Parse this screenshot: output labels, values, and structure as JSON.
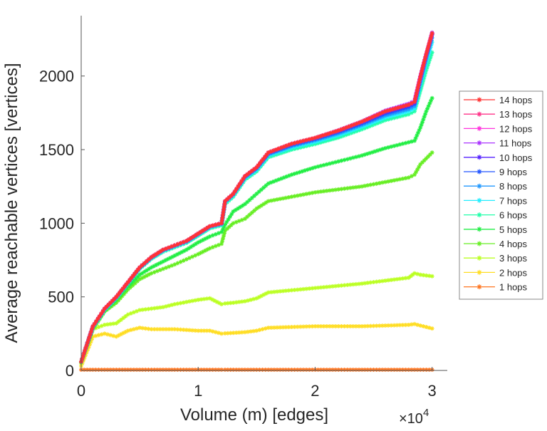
{
  "chart_data": {
    "type": "line",
    "title": "",
    "xlabel": "Volume (m) [edges]",
    "ylabel": "Average reachable vertices [vertices]",
    "x_multiplier_label": "×10",
    "x_multiplier_exp": "4",
    "xlim": [
      0,
      31300
    ],
    "ylim": [
      0,
      2410
    ],
    "xticks": [
      0,
      10000,
      20000,
      30000
    ],
    "xtick_labels": [
      "0",
      "1",
      "2",
      "3"
    ],
    "yticks": [
      0,
      500,
      1000,
      1500,
      2000
    ],
    "ytick_labels": [
      "0",
      "500",
      "1000",
      "1500",
      "2000"
    ],
    "grid": false,
    "legend_position": "right",
    "x": [
      0,
      1000,
      2000,
      3000,
      4000,
      5000,
      6000,
      7000,
      8000,
      9000,
      10000,
      11000,
      12000,
      12300,
      13000,
      14000,
      15000,
      16000,
      18000,
      20000,
      22000,
      24000,
      26000,
      28000,
      28500,
      29000,
      29500,
      30000
    ],
    "series": [
      {
        "name": "14 hops",
        "color": "#ff3333",
        "values": [
          60,
          300,
          420,
          500,
          600,
          700,
          770,
          820,
          850,
          880,
          930,
          980,
          1000,
          1150,
          1200,
          1320,
          1380,
          1480,
          1540,
          1580,
          1630,
          1690,
          1760,
          1805,
          1825,
          1995,
          2150,
          2290
        ]
      },
      {
        "name": "13 hops",
        "color": "#ff3388",
        "values": [
          60,
          300,
          420,
          500,
          600,
          700,
          770,
          820,
          850,
          880,
          930,
          980,
          1000,
          1150,
          1200,
          1320,
          1380,
          1480,
          1540,
          1580,
          1630,
          1690,
          1760,
          1805,
          1825,
          1995,
          2150,
          2290
        ]
      },
      {
        "name": "12 hops",
        "color": "#ff33dd",
        "values": [
          60,
          300,
          420,
          500,
          600,
          700,
          770,
          820,
          850,
          880,
          930,
          980,
          1000,
          1150,
          1200,
          1320,
          1380,
          1480,
          1540,
          1580,
          1630,
          1690,
          1760,
          1806,
          1826,
          1996,
          2150,
          2290
        ]
      },
      {
        "name": "11 hops",
        "color": "#aa33ff",
        "values": [
          60,
          300,
          420,
          500,
          600,
          700,
          770,
          820,
          850,
          880,
          930,
          980,
          1000,
          1150,
          1200,
          1320,
          1380,
          1480,
          1540,
          1580,
          1632,
          1692,
          1765,
          1812,
          1832,
          2000,
          2150,
          2295
        ]
      },
      {
        "name": "10 hops",
        "color": "#5522ff",
        "values": [
          60,
          300,
          420,
          500,
          600,
          700,
          770,
          820,
          850,
          880,
          930,
          980,
          1000,
          1150,
          1200,
          1320,
          1380,
          1480,
          1540,
          1580,
          1628,
          1688,
          1755,
          1800,
          1820,
          1990,
          2145,
          2285
        ]
      },
      {
        "name": "9 hops",
        "color": "#2255ff",
        "values": [
          60,
          298,
          418,
          498,
          598,
          698,
          768,
          818,
          848,
          878,
          928,
          978,
          998,
          1148,
          1198,
          1316,
          1376,
          1474,
          1532,
          1572,
          1620,
          1678,
          1745,
          1790,
          1810,
          1980,
          2140,
          2280
        ]
      },
      {
        "name": "8 hops",
        "color": "#2299ff",
        "values": [
          60,
          296,
          416,
          496,
          596,
          696,
          766,
          815,
          845,
          875,
          925,
          975,
          995,
          1145,
          1195,
          1312,
          1370,
          1468,
          1524,
          1564,
          1610,
          1668,
          1732,
          1775,
          1795,
          1960,
          2120,
          2260
        ]
      },
      {
        "name": "7 hops",
        "color": "#22eeff",
        "values": [
          60,
          294,
          414,
          494,
          594,
          694,
          763,
          812,
          842,
          872,
          922,
          972,
          992,
          1140,
          1190,
          1305,
          1362,
          1460,
          1514,
          1552,
          1598,
          1655,
          1718,
          1760,
          1780,
          1940,
          2090,
          2230
        ]
      },
      {
        "name": "6 hops",
        "color": "#22ffaa",
        "values": [
          60,
          292,
          410,
          490,
          590,
          690,
          758,
          806,
          836,
          866,
          915,
          965,
          985,
          1130,
          1180,
          1295,
          1352,
          1448,
          1500,
          1538,
          1582,
          1638,
          1700,
          1740,
          1760,
          1900,
          2040,
          2160
        ]
      },
      {
        "name": "5 hops",
        "color": "#22ee44",
        "values": [
          60,
          290,
          405,
          480,
          570,
          650,
          700,
          740,
          780,
          820,
          870,
          910,
          940,
          990,
          1080,
          1130,
          1200,
          1270,
          1330,
          1380,
          1420,
          1460,
          1510,
          1550,
          1560,
          1650,
          1760,
          1850
        ]
      },
      {
        "name": "4 hops",
        "color": "#66ee22",
        "values": [
          55,
          280,
          400,
          460,
          550,
          620,
          660,
          690,
          720,
          755,
          790,
          830,
          860,
          950,
          1000,
          1030,
          1100,
          1150,
          1180,
          1210,
          1230,
          1250,
          1280,
          1310,
          1330,
          1400,
          1440,
          1480
        ]
      },
      {
        "name": "3 hops",
        "color": "#bbff22",
        "values": [
          50,
          280,
          310,
          320,
          380,
          410,
          420,
          430,
          450,
          465,
          480,
          490,
          450,
          455,
          460,
          470,
          490,
          530,
          545,
          560,
          575,
          590,
          610,
          630,
          660,
          650,
          645,
          640
        ]
      },
      {
        "name": "2 hops",
        "color": "#ffdd22",
        "values": [
          30,
          230,
          250,
          230,
          270,
          290,
          280,
          280,
          280,
          275,
          270,
          270,
          250,
          252,
          255,
          260,
          270,
          290,
          295,
          300,
          300,
          300,
          305,
          310,
          315,
          305,
          295,
          285
        ]
      },
      {
        "name": "1 hops",
        "color": "#ff7722",
        "values": [
          5,
          5,
          5,
          5,
          5,
          5,
          5,
          5,
          5,
          5,
          5,
          5,
          5,
          5,
          5,
          5,
          5,
          5,
          5,
          5,
          5,
          5,
          5,
          5,
          5,
          5,
          5,
          5
        ]
      }
    ]
  }
}
